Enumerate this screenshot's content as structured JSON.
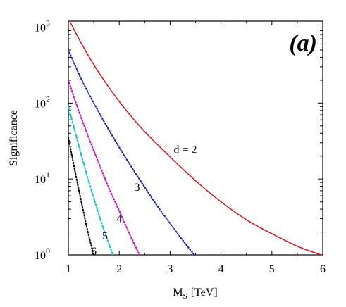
{
  "chart_data": {
    "type": "line",
    "panel_label": "(a)",
    "xlabel_main": "M",
    "xlabel_sub": "S",
    "xlabel_unit": "[TeV]",
    "ylabel": "Significance",
    "xlim": [
      1,
      6
    ],
    "ylim": [
      1,
      1200
    ],
    "yscale": "log",
    "x_ticks": [
      {
        "value": 1,
        "label": "1"
      },
      {
        "value": 2,
        "label": "2"
      },
      {
        "value": 3,
        "label": "3"
      },
      {
        "value": 4,
        "label": "4"
      },
      {
        "value": 5,
        "label": "5"
      },
      {
        "value": 6,
        "label": "6"
      }
    ],
    "y_ticks": [
      {
        "value": 1,
        "base": "10",
        "exp": "0"
      },
      {
        "value": 10,
        "base": "10",
        "exp": "1"
      },
      {
        "value": 100,
        "base": "10",
        "exp": "2"
      },
      {
        "value": 1000,
        "base": "10",
        "exp": "3"
      }
    ],
    "grid": false,
    "series": [
      {
        "name": "d = 2",
        "color": "#e8000b",
        "style": "solid",
        "label_at": [
          3.3,
          22
        ],
        "points": [
          [
            1,
            1300
          ],
          [
            1.25,
            620
          ],
          [
            1.5,
            320
          ],
          [
            1.75,
            178
          ],
          [
            2,
            105
          ],
          [
            2.25,
            65
          ],
          [
            2.5,
            42
          ],
          [
            3,
            19.5
          ],
          [
            3.5,
            9.5
          ],
          [
            4,
            5
          ],
          [
            4.5,
            2.9
          ],
          [
            5,
            1.9
          ],
          [
            5.5,
            1.3
          ],
          [
            6,
            0.98
          ]
        ]
      },
      {
        "name": "3",
        "color": "#1a1ab8",
        "style": "dotted",
        "label_at": [
          2.35,
          7
        ],
        "points": [
          [
            1,
            500
          ],
          [
            1.25,
            210
          ],
          [
            1.5,
            100
          ],
          [
            1.75,
            50
          ],
          [
            2,
            26
          ],
          [
            2.25,
            14
          ],
          [
            2.5,
            7.8
          ],
          [
            2.75,
            4.4
          ],
          [
            3,
            2.6
          ],
          [
            3.25,
            1.55
          ],
          [
            3.5,
            0.96
          ]
        ]
      },
      {
        "name": "4",
        "color": "#d400d4",
        "style": "dotted",
        "label_at": [
          2.0,
          2.7
        ],
        "points": [
          [
            1,
            200
          ],
          [
            1.2,
            80
          ],
          [
            1.4,
            35
          ],
          [
            1.6,
            16
          ],
          [
            1.8,
            7.5
          ],
          [
            2,
            3.8
          ],
          [
            2.2,
            1.9
          ],
          [
            2.4,
            1.0
          ],
          [
            2.45,
            0.9
          ]
        ]
      },
      {
        "name": "5",
        "color": "#00c8d4",
        "style": "dashdot",
        "label_at": [
          1.72,
          1.6
        ],
        "points": [
          [
            1,
            90
          ],
          [
            1.15,
            38
          ],
          [
            1.3,
            16
          ],
          [
            1.45,
            7.2
          ],
          [
            1.6,
            3.4
          ],
          [
            1.75,
            1.7
          ],
          [
            1.9,
            0.9
          ]
        ]
      },
      {
        "name": "6",
        "color": "#000000",
        "style": "dotted",
        "label_at": [
          1.5,
          1.0
        ],
        "points": [
          [
            1,
            35
          ],
          [
            1.1,
            16
          ],
          [
            1.2,
            7.5
          ],
          [
            1.3,
            3.6
          ],
          [
            1.4,
            1.8
          ],
          [
            1.5,
            1.0
          ],
          [
            1.55,
            0.8
          ]
        ]
      }
    ]
  }
}
